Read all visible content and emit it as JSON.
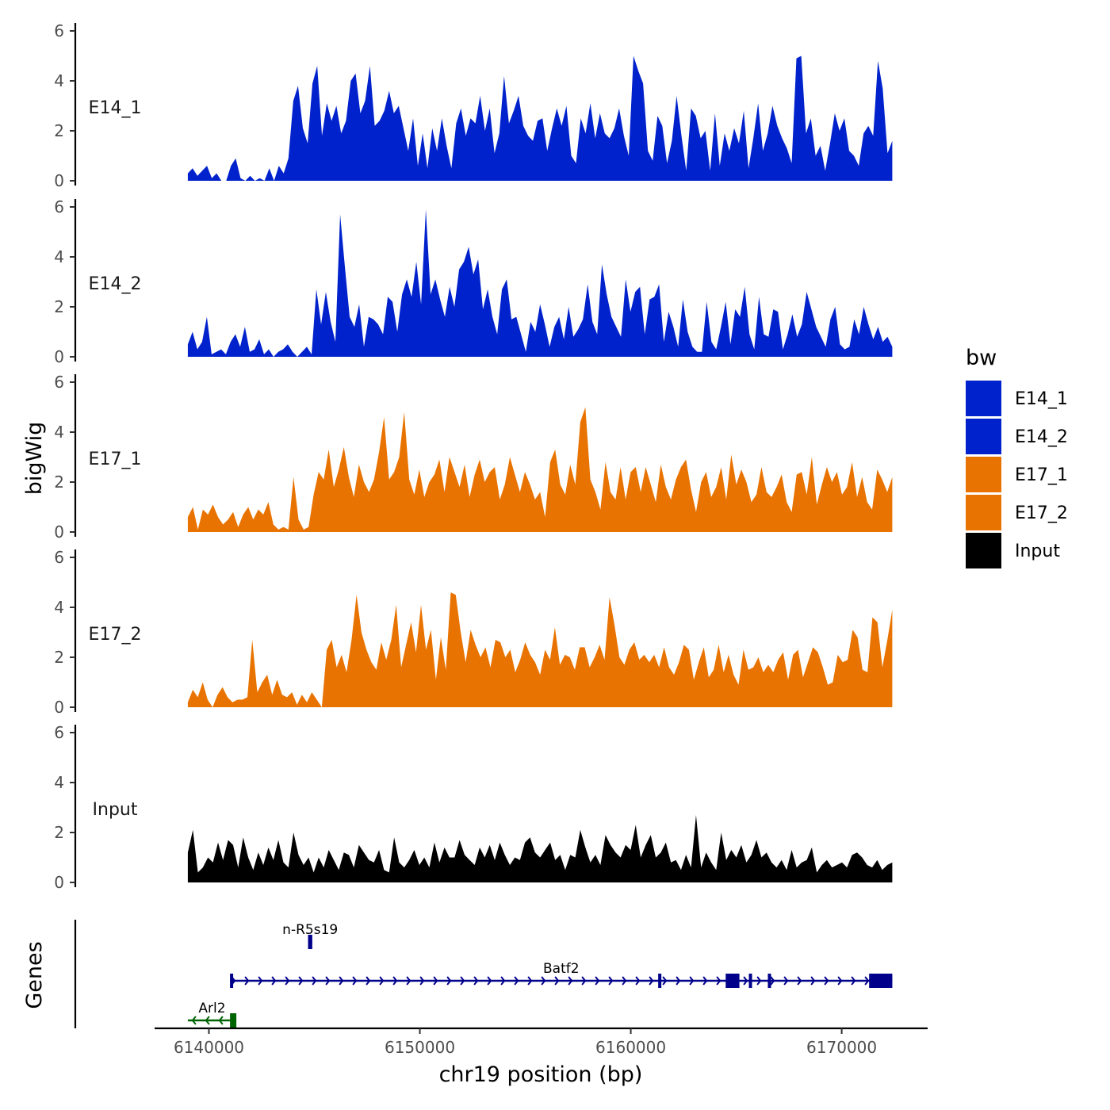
{
  "chart_data": {
    "type": "area",
    "title": "",
    "ylabel": "bigWig",
    "xlabel": "chr19 position (bp)",
    "genes_label": "Genes",
    "ylim": [
      0,
      6
    ],
    "y_ticks": [
      "0",
      "2",
      "4",
      "6"
    ],
    "xlim": [
      6137500,
      6174000
    ],
    "x_ticks": [
      {
        "value": 6140000,
        "label": "6140000"
      },
      {
        "value": 6150000,
        "label": "6150000"
      },
      {
        "value": 6160000,
        "label": "6160000"
      },
      {
        "value": 6170000,
        "label": "6170000"
      }
    ],
    "track_range": [
      6139000,
      6172400
    ],
    "legend": {
      "title": "bw",
      "entries": [
        {
          "name": "E14_1",
          "color": "#0022cc"
        },
        {
          "name": "E14_2",
          "color": "#0022cc"
        },
        {
          "name": "E17_1",
          "color": "#e87300"
        },
        {
          "name": "E17_2",
          "color": "#e87300"
        },
        {
          "name": "Input",
          "color": "#000000"
        }
      ]
    },
    "series": [
      {
        "name": "E14_1",
        "color": "#0022cc",
        "values": [
          0.3,
          0.5,
          0.2,
          0.4,
          0.6,
          0.1,
          0.3,
          0,
          0,
          0.6,
          0.9,
          0.1,
          0,
          0.2,
          0,
          0.1,
          0,
          0.5,
          0,
          0.6,
          0.3,
          0.9,
          3.2,
          3.8,
          2.1,
          1.5,
          3.9,
          4.6,
          1.8,
          3.1,
          2.4,
          3.0,
          1.9,
          2.4,
          4.0,
          4.3,
          2.7,
          3.2,
          4.6,
          2.2,
          2.4,
          2.8,
          3.6,
          2.7,
          3.0,
          2.1,
          1.2,
          2.5,
          0.6,
          1.9,
          0.5,
          2.1,
          1.2,
          2.5,
          1.4,
          0.5,
          2.3,
          2.9,
          1.8,
          2.5,
          2.3,
          3.4,
          2.0,
          2.9,
          1.1,
          1.9,
          4.2,
          2.3,
          2.8,
          3.4,
          2.2,
          1.8,
          1.6,
          2.4,
          2.5,
          1.2,
          2.1,
          2.9,
          2.2,
          3.0,
          1.0,
          0.7,
          2.5,
          1.9,
          3.1,
          1.7,
          2.7,
          1.9,
          1.7,
          2.1,
          2.9,
          1.8,
          1.0,
          5.0,
          4.4,
          3.9,
          1.2,
          0.8,
          2.6,
          2.2,
          0.7,
          1.6,
          3.4,
          1.8,
          0.4,
          2.9,
          2.6,
          1.7,
          2.0,
          0.4,
          2.7,
          0.6,
          1.9,
          1.2,
          2.1,
          1.5,
          2.8,
          0.5,
          1.7,
          3.1,
          1.2,
          1.9,
          3.0,
          2.2,
          1.7,
          1.3,
          0.7,
          4.9,
          5.0,
          1.9,
          2.5,
          1.0,
          1.4,
          0.4,
          1.5,
          2.7,
          2.0,
          2.5,
          1.2,
          1.0,
          0.6,
          1.9,
          2.2,
          1.8,
          4.8,
          3.7,
          1.1,
          1.6
        ]
      },
      {
        "name": "E14_2",
        "color": "#0022cc",
        "values": [
          0.5,
          1.0,
          0.3,
          0.6,
          1.6,
          0.1,
          0.2,
          0.3,
          0.1,
          0.6,
          0.9,
          0.4,
          1.2,
          0.2,
          0.3,
          0.7,
          0.1,
          0.3,
          0,
          0.2,
          0.3,
          0.5,
          0.2,
          0,
          0.2,
          0.4,
          0.1,
          2.7,
          1.3,
          2.6,
          1.4,
          0.6,
          5.7,
          3.6,
          1.6,
          1.2,
          2.1,
          0.4,
          1.6,
          1.5,
          1.3,
          0.9,
          2.4,
          2.2,
          1.0,
          2.5,
          3.1,
          2.4,
          3.8,
          2.1,
          5.9,
          2.5,
          3.1,
          2.3,
          1.6,
          2.8,
          2.0,
          3.5,
          3.8,
          4.4,
          3.3,
          3.9,
          1.9,
          2.7,
          1.6,
          0.9,
          2.7,
          3.1,
          1.5,
          1.6,
          0.9,
          0.2,
          1.4,
          1.0,
          2.1,
          1.3,
          0.4,
          1.2,
          1.6,
          0.7,
          2.0,
          0.8,
          1.1,
          1.5,
          2.9,
          1.4,
          0.9,
          3.7,
          2.5,
          1.6,
          1.2,
          0.8,
          3.1,
          1.8,
          2.6,
          2.8,
          0.9,
          2.3,
          2.4,
          2.9,
          0.6,
          1.8,
          1.2,
          0.4,
          2.3,
          1.0,
          0.4,
          0.2,
          0.2,
          2.2,
          0.6,
          0.3,
          1.2,
          2.2,
          0.5,
          1.9,
          1.6,
          2.8,
          0.9,
          0.3,
          2.4,
          0.9,
          0.8,
          1.9,
          1.8,
          0.3,
          0.9,
          1.7,
          0.8,
          1.3,
          2.6,
          1.9,
          1.2,
          0.8,
          0.4,
          1.5,
          2.0,
          0.5,
          0.3,
          0.4,
          1.5,
          0.9,
          2.0,
          1.3,
          0.7,
          1.2,
          0.6,
          0.8,
          0.4
        ]
      },
      {
        "name": "E17_1",
        "color": "#e87300",
        "values": [
          0.6,
          1.0,
          0.1,
          0.9,
          0.7,
          1.1,
          0.6,
          0.3,
          0.5,
          0.8,
          0.2,
          0.7,
          1.0,
          0.5,
          0.9,
          0.7,
          1.2,
          0.3,
          0.1,
          0.2,
          0.1,
          2.2,
          0.5,
          0.1,
          0.2,
          1.5,
          2.4,
          2.1,
          3.3,
          1.8,
          2.5,
          3.4,
          2.2,
          1.4,
          2.7,
          2.0,
          1.6,
          2.1,
          3.2,
          4.6,
          2.1,
          2.4,
          3.0,
          4.8,
          2.1,
          1.5,
          2.5,
          1.4,
          2.0,
          2.3,
          2.9,
          1.6,
          3.0,
          2.4,
          1.8,
          2.7,
          1.4,
          2.3,
          2.9,
          2.0,
          2.4,
          2.6,
          1.3,
          1.9,
          3.0,
          2.3,
          1.6,
          2.4,
          1.9,
          1.3,
          1.6,
          0.6,
          2.8,
          3.3,
          1.9,
          1.5,
          2.7,
          1.9,
          4.4,
          5.0,
          2.1,
          1.6,
          0.9,
          2.8,
          1.6,
          1.3,
          2.6,
          1.3,
          2.4,
          2.6,
          1.6,
          2.6,
          1.9,
          1.2,
          2.7,
          1.8,
          1.3,
          2.1,
          2.6,
          2.9,
          1.7,
          0.8,
          2.0,
          2.4,
          1.4,
          1.8,
          2.6,
          1.3,
          3.1,
          1.9,
          2.5,
          2.0,
          1.2,
          1.5,
          2.6,
          1.6,
          1.4,
          1.8,
          2.3,
          1.2,
          0.8,
          2.3,
          2.4,
          1.5,
          3.0,
          1.1,
          1.9,
          2.6,
          2.0,
          2.4,
          1.5,
          1.8,
          2.8,
          1.4,
          2.2,
          1.2,
          0.9,
          2.5,
          2.1,
          1.6,
          2.2
        ]
      },
      {
        "name": "E17_2",
        "color": "#e87300",
        "values": [
          0.2,
          0.7,
          0.4,
          1.0,
          0.3,
          0,
          0.5,
          0.8,
          0.4,
          0.2,
          0.3,
          0.3,
          0.4,
          2.7,
          0.6,
          1.0,
          1.3,
          0.5,
          1.1,
          0.5,
          0.4,
          0.6,
          0.1,
          0.5,
          0.2,
          0.6,
          0.3,
          0,
          2.3,
          2.7,
          1.6,
          2.1,
          1.4,
          2.7,
          4.5,
          3.0,
          2.3,
          1.8,
          1.5,
          2.6,
          1.9,
          2.7,
          4.1,
          1.6,
          2.5,
          3.4,
          2.2,
          4.1,
          2.3,
          3.1,
          1.1,
          2.8,
          1.5,
          4.6,
          4.5,
          3.0,
          1.8,
          3.1,
          2.5,
          2.0,
          2.4,
          1.6,
          2.7,
          2.6,
          2.0,
          2.3,
          1.4,
          1.9,
          2.6,
          2.1,
          1.8,
          1.3,
          2.3,
          1.9,
          3.2,
          1.7,
          2.1,
          2.0,
          1.5,
          2.4,
          2.4,
          1.6,
          2.0,
          2.5,
          1.9,
          4.4,
          3.3,
          2.0,
          1.7,
          2.3,
          2.6,
          1.9,
          2.1,
          1.8,
          2.1,
          1.6,
          2.4,
          1.6,
          1.3,
          1.8,
          2.5,
          2.3,
          1.1,
          1.8,
          2.4,
          1.2,
          1.5,
          2.5,
          1.4,
          2.1,
          1.3,
          0.9,
          2.3,
          1.5,
          1.6,
          2.0,
          1.4,
          1.7,
          1.4,
          1.9,
          2.2,
          1.1,
          2.1,
          2.3,
          1.2,
          1.8,
          2.4,
          2.2,
          1.6,
          0.9,
          1.0,
          2.1,
          1.8,
          1.9,
          3.1,
          2.8,
          1.5,
          1.4,
          3.6,
          3.4,
          1.6,
          2.7,
          3.9
        ]
      },
      {
        "name": "Input",
        "color": "#000000",
        "values": [
          1.2,
          2.1,
          0.4,
          0.6,
          1.0,
          0.8,
          1.6,
          0.9,
          1.7,
          1.5,
          0.6,
          1.8,
          1.0,
          0.5,
          1.2,
          0.7,
          1.4,
          0.9,
          1.7,
          0.8,
          0.6,
          2.0,
          1.1,
          0.7,
          1.0,
          0.4,
          1.0,
          0.6,
          1.3,
          0.9,
          0.5,
          1.2,
          1.1,
          0.6,
          1.5,
          1.2,
          0.9,
          0.8,
          1.3,
          0.5,
          0.4,
          1.8,
          0.8,
          0.6,
          0.9,
          1.3,
          0.7,
          1.0,
          0.6,
          1.6,
          0.8,
          1.4,
          1.0,
          1.0,
          1.7,
          1.1,
          0.9,
          0.7,
          1.4,
          1.0,
          1.5,
          0.9,
          1.6,
          1.1,
          0.7,
          1.0,
          0.9,
          1.6,
          1.8,
          1.2,
          1.0,
          1.3,
          1.6,
          0.9,
          1.1,
          0.5,
          1.1,
          1.0,
          2.1,
          1.4,
          0.8,
          1.1,
          0.7,
          1.9,
          1.5,
          1.2,
          1.0,
          1.5,
          1.3,
          2.3,
          1.0,
          1.5,
          1.9,
          1.0,
          1.2,
          1.6,
          0.8,
          0.9,
          0.5,
          1.1,
          0.6,
          2.7,
          0.6,
          1.2,
          0.8,
          0.5,
          2.0,
          0.9,
          1.3,
          1.0,
          1.5,
          0.8,
          1.1,
          1.7,
          1.0,
          1.2,
          0.8,
          0.6,
          0.9,
          0.5,
          1.3,
          0.6,
          0.8,
          0.9,
          1.4,
          0.4,
          0.7,
          0.9,
          0.6,
          0.7,
          0.8,
          0.6,
          1.1,
          1.2,
          1.0,
          0.7,
          0.6,
          0.9,
          0.5,
          0.7,
          0.8
        ]
      }
    ],
    "genes": [
      {
        "name": "n-R5s19",
        "strand": "+",
        "color": "#00008b",
        "start": 6144700,
        "end": 6144900,
        "row": 0,
        "exons": [
          [
            6144700,
            6144900
          ]
        ]
      },
      {
        "name": "Batf2",
        "strand": "+",
        "color": "#00008b",
        "start": 6141000,
        "end": 6172400,
        "row": 1,
        "exons": [
          [
            6141000,
            6141150
          ],
          [
            6161300,
            6161450
          ],
          [
            6164500,
            6165150
          ],
          [
            6165600,
            6165750
          ],
          [
            6166500,
            6166650
          ],
          [
            6171300,
            6172400
          ]
        ]
      },
      {
        "name": "Arl2",
        "strand": "-",
        "color": "#006400",
        "start": 6139000,
        "end": 6141300,
        "row": 2,
        "exons": [
          [
            6141000,
            6141300
          ]
        ]
      }
    ]
  }
}
